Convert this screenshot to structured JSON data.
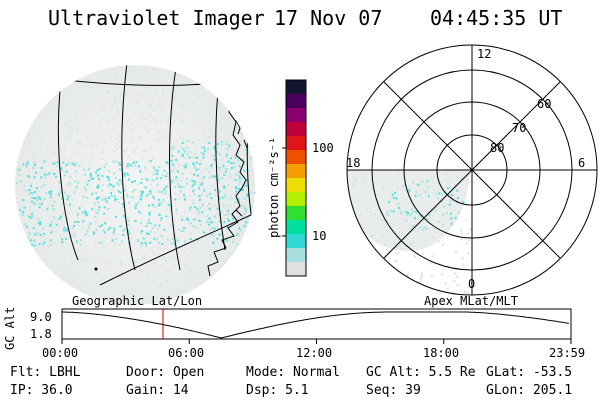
{
  "header": {
    "instrument": "Ultraviolet Imager",
    "date": "17 Nov 07",
    "time": "04:45:35 UT"
  },
  "colorbar": {
    "units": "photon cm⁻²s⁻¹",
    "tick_labels": [
      "100",
      "10"
    ],
    "colors": [
      "#151530",
      "#4b0060",
      "#8a0070",
      "#c0003a",
      "#e0151a",
      "#f05000",
      "#f5a000",
      "#eedd00",
      "#b0f000",
      "#30e030",
      "#00e0a0",
      "#30d8d8",
      "#a8e0e0",
      "#e0e0e0"
    ]
  },
  "polar_plot": {
    "clock_labels": [
      "12",
      "6",
      "18",
      "0"
    ],
    "lat_labels": [
      "60",
      "70",
      "80"
    ]
  },
  "map_labels": {
    "left": "Geographic Lat/Lon",
    "right": "Apex MLat/MLT"
  },
  "altitude_plot": {
    "ylabel": "GC Alt",
    "y_ticks": [
      "9.0",
      "1.8"
    ],
    "x_ticks": [
      "00:00",
      "06:00",
      "12:00",
      "18:00",
      "23:59"
    ],
    "current_marker_hours": 4.76,
    "marker_color": "#d00000"
  },
  "info": {
    "filter": "Flt: LBHL",
    "ip": "IP: 36.0",
    "door": "Door: Open",
    "gain": "Gain: 14",
    "mode": "Mode: Normal",
    "dsp": "Dsp:    5.1",
    "gc_alt": "GC Alt: 5.5 Re",
    "seq": "Seq: 39",
    "glat": "GLat: -53.5",
    "glon": "GLon: 205.1"
  }
}
